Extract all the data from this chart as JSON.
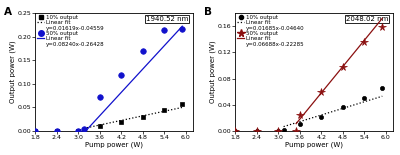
{
  "panel_A": {
    "title": "1940.52 nm",
    "label": "A",
    "xlabel": "Pump power (W)",
    "ylabel": "Output power (W)",
    "xlim": [
      1.8,
      6.2
    ],
    "ylim": [
      0,
      0.25
    ],
    "xticks": [
      1.8,
      2.4,
      3.0,
      3.6,
      4.2,
      4.8,
      5.4,
      6.0
    ],
    "yticks": [
      0.0,
      0.05,
      0.1,
      0.15,
      0.2,
      0.25
    ],
    "series_10pct": {
      "x": [
        1.8,
        2.4,
        3.0,
        3.15,
        3.6,
        4.2,
        4.8,
        5.4,
        5.9
      ],
      "y": [
        0.0,
        0.0,
        0.0,
        0.002,
        0.01,
        0.02,
        0.03,
        0.045,
        0.058
      ],
      "color": "black",
      "marker": "s",
      "markersize": 3.0,
      "label": "10% output"
    },
    "fit_10pct": {
      "slope": 0.01619,
      "intercept": -0.04559,
      "x_range": [
        3.15,
        5.9
      ],
      "color": "black",
      "linestyle": "dotted",
      "label": "Linear fit",
      "eq": "y=0.01619x-0.04559"
    },
    "series_50pct": {
      "x": [
        1.8,
        2.4,
        3.0,
        3.15,
        3.6,
        4.2,
        4.8,
        5.4,
        5.9
      ],
      "y": [
        0.0,
        0.0,
        0.0,
        0.005,
        0.073,
        0.118,
        0.17,
        0.213,
        0.215
      ],
      "color": "#1111cc",
      "marker": "o",
      "markersize": 4.0,
      "label": "50% output"
    },
    "fit_50pct": {
      "slope": 0.0824,
      "intercept": -0.26428,
      "x_range": [
        3.15,
        5.9
      ],
      "color": "#1111cc",
      "linestyle": "solid",
      "label": "Linear fit",
      "eq": "y=0.08240x-0.26428"
    }
  },
  "panel_B": {
    "title": "2048.02 nm",
    "label": "B",
    "xlabel": "Pump power (W)",
    "ylabel": "Output power (W)",
    "xlim": [
      1.8,
      6.2
    ],
    "ylim": [
      0,
      0.18
    ],
    "xticks": [
      1.8,
      2.4,
      3.0,
      3.6,
      4.2,
      4.8,
      5.4,
      6.0
    ],
    "yticks": [
      0.0,
      0.04,
      0.08,
      0.12,
      0.16
    ],
    "series_10pct": {
      "x": [
        1.8,
        2.4,
        3.0,
        3.15,
        3.6,
        4.2,
        4.8,
        5.4,
        5.9
      ],
      "y": [
        0.0,
        0.0,
        0.0,
        0.001,
        0.01,
        0.022,
        0.036,
        0.05,
        0.065
      ],
      "color": "black",
      "marker": "o",
      "markersize": 3.0,
      "label": "10% output"
    },
    "fit_10pct": {
      "slope": 0.01685,
      "intercept": -0.0464,
      "x_range": [
        3.15,
        5.9
      ],
      "color": "black",
      "linestyle": "dotted",
      "label": "Linear fit",
      "eq": "y=0.01685x-0.04640"
    },
    "series_50pct": {
      "x": [
        1.8,
        2.4,
        3.0,
        3.5,
        3.6,
        4.2,
        4.8,
        5.4,
        5.9
      ],
      "y": [
        0.0,
        0.0,
        0.0,
        0.0,
        0.025,
        0.06,
        0.098,
        0.135,
        0.158
      ],
      "color": "#8b1010",
      "marker": "*",
      "markersize": 5.5,
      "label": "50% output"
    },
    "fit_50pct": {
      "slope": 0.06688,
      "intercept": -0.22285,
      "x_range": [
        3.5,
        5.9
      ],
      "color": "#8b1010",
      "linestyle": "solid",
      "label": "Linear fit",
      "eq": "y=0.06688x-0.22285"
    }
  }
}
